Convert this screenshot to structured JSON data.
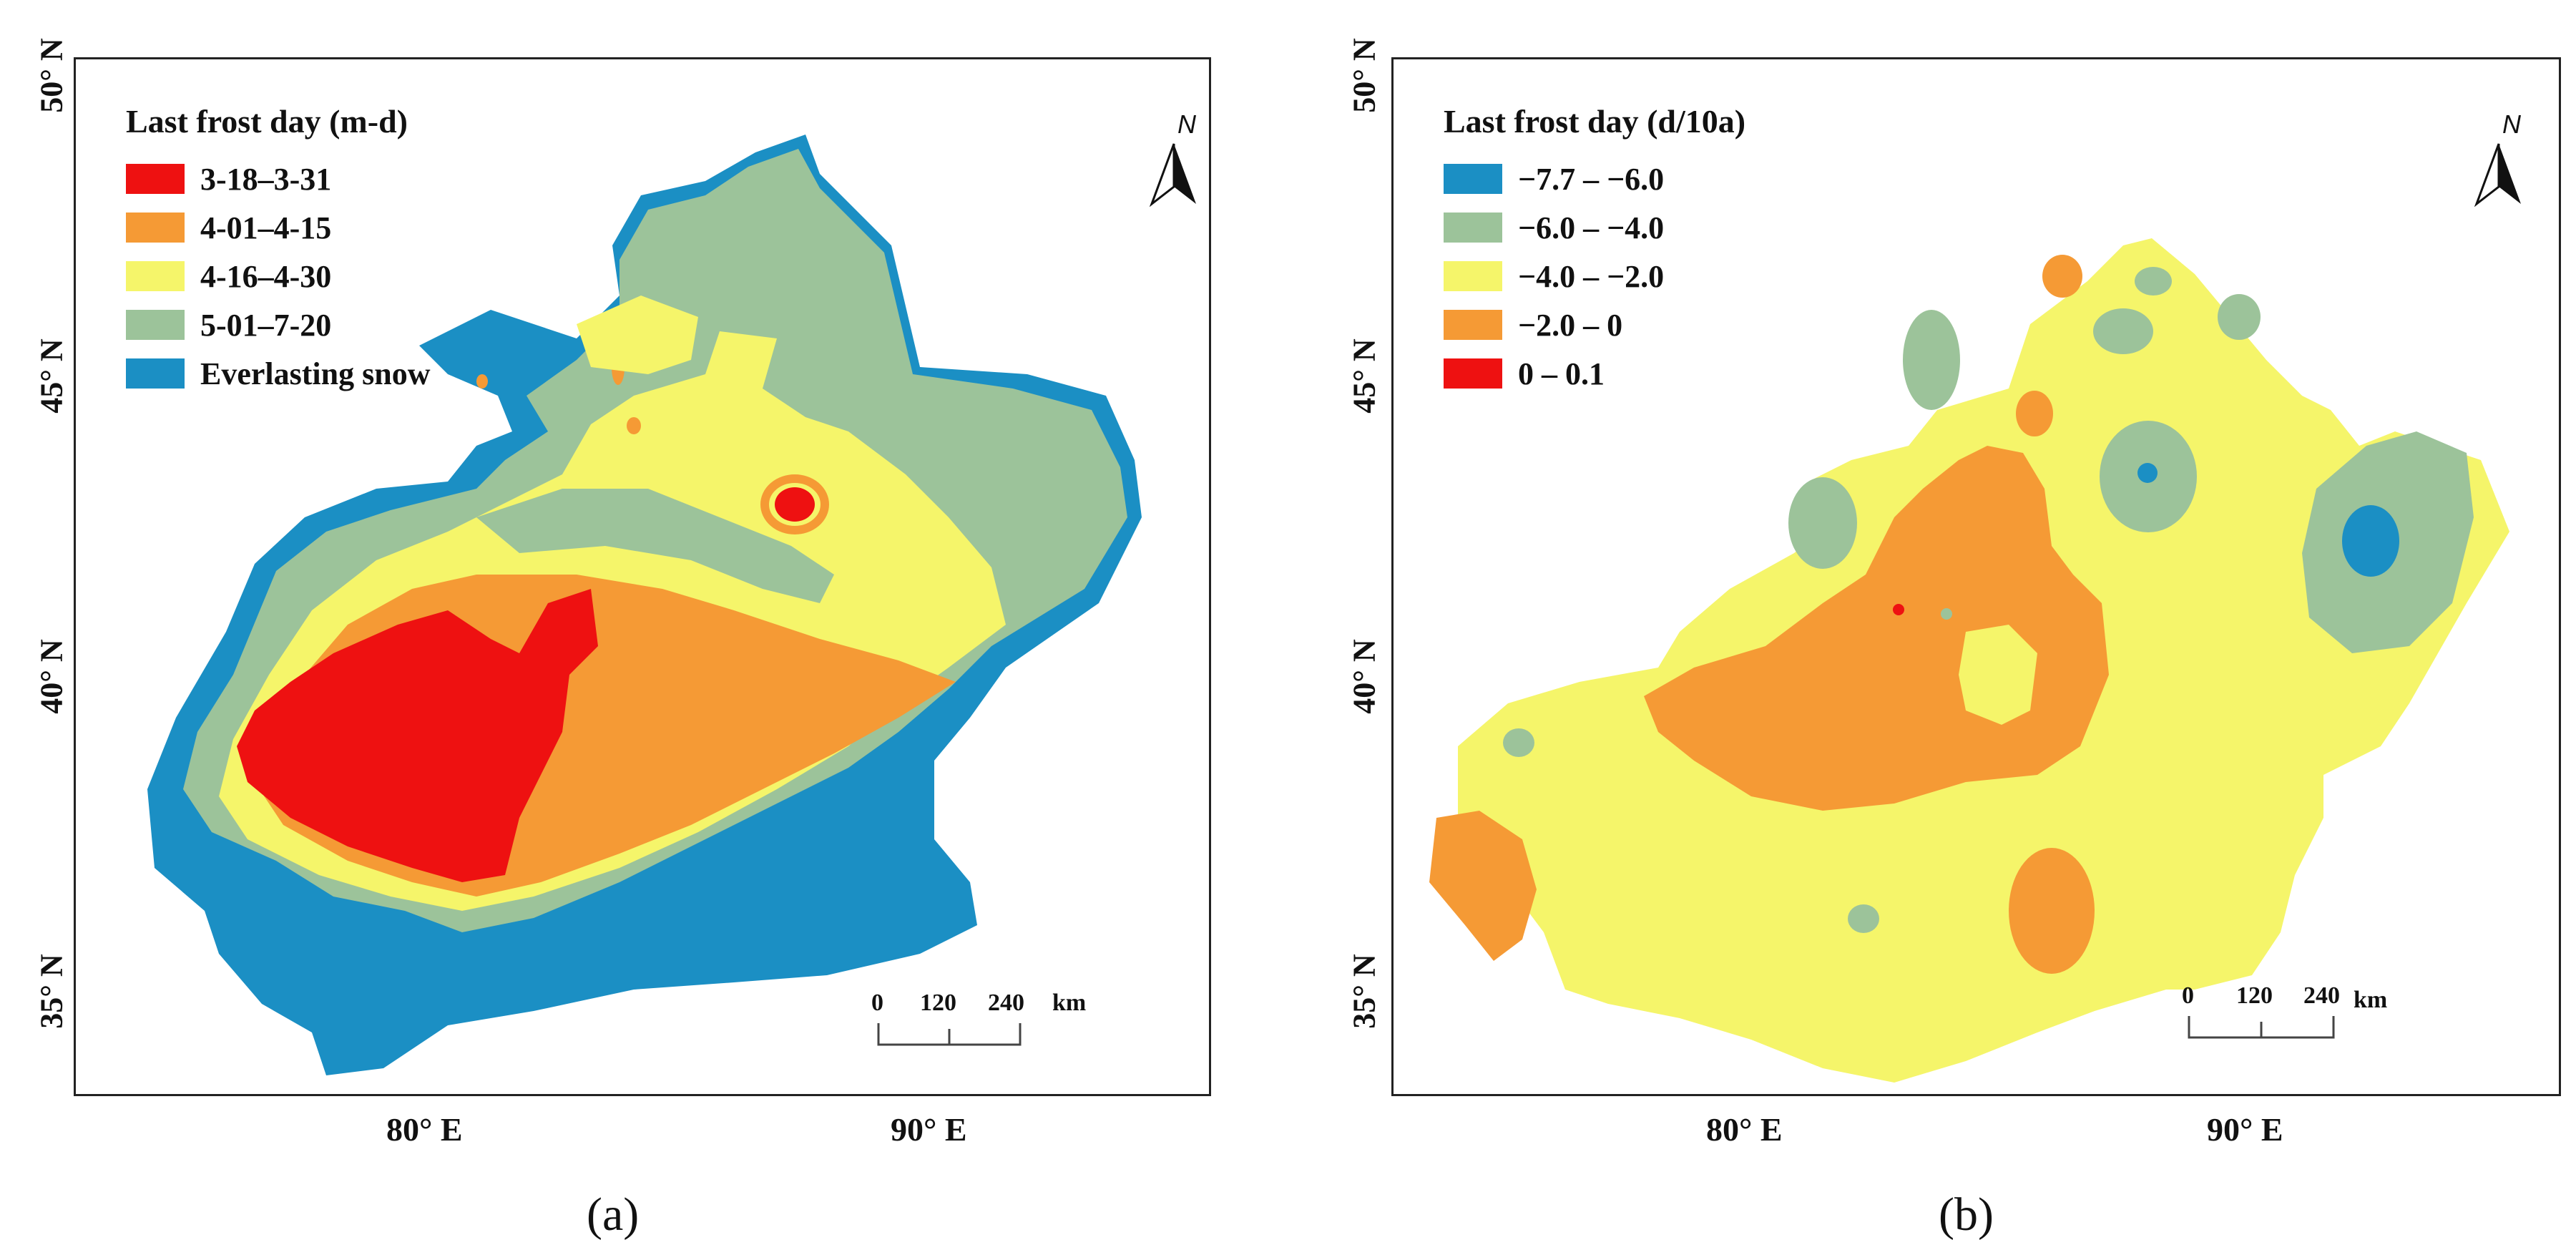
{
  "panels": [
    {
      "id": "a",
      "caption": "(a)",
      "legend": {
        "title": "Last frost day (m-d)",
        "items": [
          {
            "label": "3-18–3-31",
            "color": "#ee1111"
          },
          {
            "label": "4-01–4-15",
            "color": "#f59a35"
          },
          {
            "label": "4-16–4-30",
            "color": "#f5f56a"
          },
          {
            "label": "5-01–7-20",
            "color": "#9cc39a"
          },
          {
            "label": "Everlasting snow",
            "color": "#1b8fc4"
          }
        ]
      },
      "north_label": "N",
      "scale": {
        "ticks": [
          "0",
          "120",
          "240"
        ],
        "unit": "km"
      },
      "lat_labels": [
        "50° N",
        "45° N",
        "40° N",
        "35° N"
      ],
      "lon_labels": [
        "80° E",
        "90° E"
      ]
    },
    {
      "id": "b",
      "caption": "(b)",
      "legend": {
        "title": "Last frost day (d/10a)",
        "items": [
          {
            "label": "−7.7 – −6.0",
            "color": "#1b8fc4"
          },
          {
            "label": "−6.0 – −4.0",
            "color": "#9cc39a"
          },
          {
            "label": "−4.0 – −2.0",
            "color": "#f5f56a"
          },
          {
            "label": "−2.0 – 0",
            "color": "#f59a35"
          },
          {
            "label": "0 – 0.1",
            "color": "#ee1111"
          }
        ]
      },
      "north_label": "N",
      "scale": {
        "ticks": [
          "0",
          "120",
          "240"
        ],
        "unit": "km"
      },
      "lat_labels": [
        "50° N",
        "45° N",
        "40° N",
        "35° N"
      ],
      "lon_labels": [
        "80° E",
        "90° E"
      ]
    }
  ]
}
